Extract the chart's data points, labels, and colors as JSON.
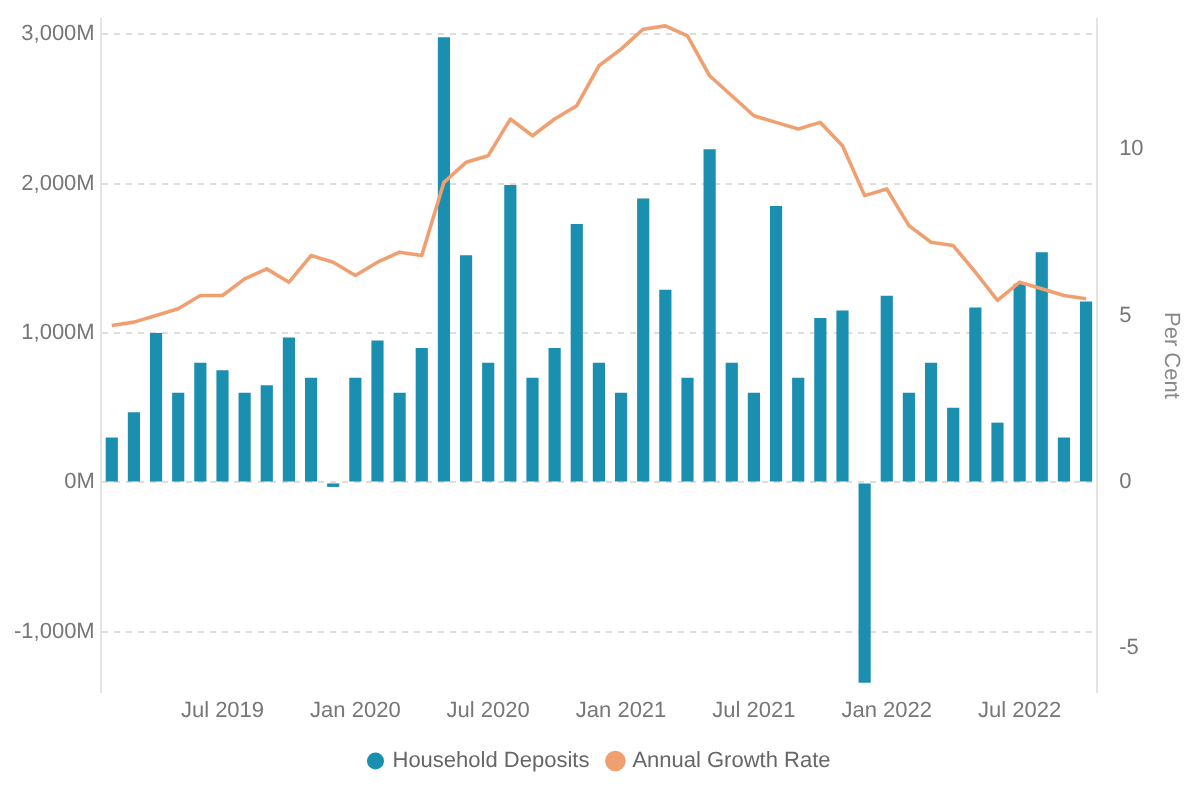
{
  "chart_data": {
    "type": "bar",
    "y2label": "Per Cent",
    "categories": [
      null,
      null,
      null,
      null,
      null,
      "Jul 2019",
      null,
      null,
      null,
      null,
      null,
      "Jan 2020",
      null,
      null,
      null,
      null,
      null,
      "Jul 2020",
      null,
      null,
      null,
      null,
      null,
      "Jan 2021",
      null,
      null,
      null,
      null,
      null,
      "Jul 2021",
      null,
      null,
      null,
      null,
      null,
      "Jan 2022",
      null,
      null,
      null,
      null,
      null,
      "Jul 2022",
      null,
      null,
      null
    ],
    "series": [
      {
        "name": "Household Deposits",
        "color": "#1b8fb0",
        "values": [
          300,
          470,
          1000,
          600,
          800,
          750,
          600,
          650,
          970,
          700,
          -30,
          700,
          950,
          600,
          900,
          2980,
          1520,
          800,
          1990,
          700,
          900,
          1730,
          800,
          600,
          1900,
          1290,
          700,
          2230,
          800,
          600,
          1850,
          700,
          1100,
          1150,
          -1340,
          1250,
          600,
          800,
          500,
          1170,
          400,
          1330,
          1540,
          300,
          1210
        ]
      },
      {
        "name": "Annual Growth Rate",
        "type": "line",
        "axis": "y2",
        "color": "#f0a070",
        "values": [
          4.7,
          4.8,
          5.0,
          5.2,
          5.6,
          5.6,
          6.1,
          6.4,
          6.0,
          6.8,
          6.6,
          6.2,
          6.6,
          6.9,
          6.8,
          9.0,
          9.6,
          9.8,
          10.9,
          10.4,
          10.9,
          11.3,
          12.5,
          13.0,
          13.6,
          13.7,
          13.4,
          12.2,
          11.6,
          11.0,
          10.8,
          10.6,
          10.8,
          10.1,
          8.6,
          8.8,
          7.7,
          7.2,
          7.1,
          6.3,
          5.45,
          6.0,
          5.8,
          5.6,
          5.5
        ]
      }
    ],
    "ylim": [
      -1400,
      3100
    ],
    "yticks": [
      {
        "value": -1000,
        "label": "-1,000M"
      },
      {
        "value": 0,
        "label": "0M"
      },
      {
        "value": 1000,
        "label": "1,000M"
      },
      {
        "value": 2000,
        "label": "2,000M"
      },
      {
        "value": 3000,
        "label": "3,000M"
      }
    ],
    "y2lim": [
      -6.3,
      13.9
    ],
    "y2ticks": [
      -5,
      0,
      5,
      10
    ],
    "grid": "y",
    "legend": "bottom",
    "marker": "none"
  }
}
